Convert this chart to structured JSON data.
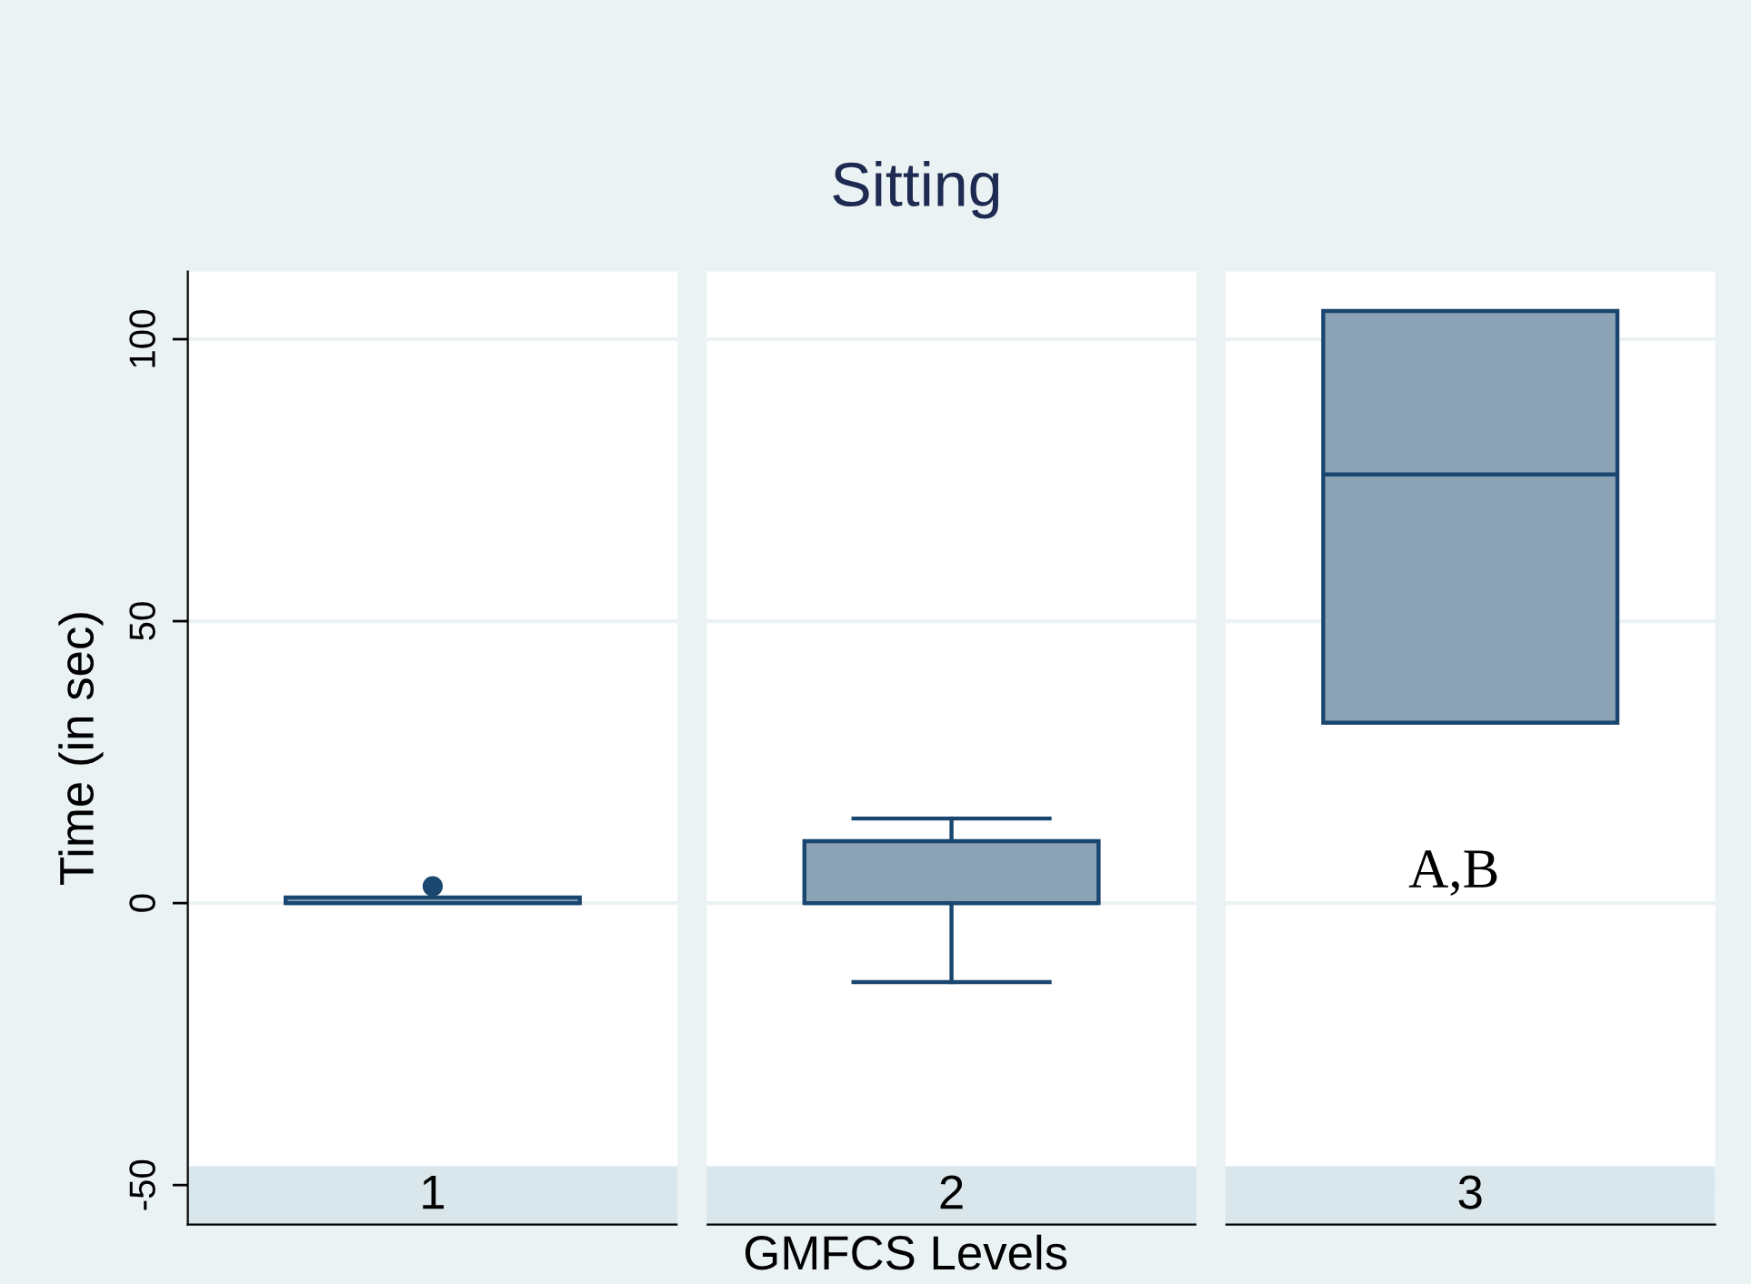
{
  "chart_data": {
    "type": "box",
    "title": "Sitting",
    "xlabel": "GMFCS Levels",
    "ylabel": "Time (in sec)",
    "categories": [
      "1",
      "2",
      "3"
    ],
    "color": "#8ca3b6",
    "boxes": [
      {
        "low": 0,
        "q1": 0,
        "median": 0,
        "q3": 1,
        "high": 1,
        "outliers": [
          3
        ]
      },
      {
        "low": -14,
        "q1": 0,
        "median": 0,
        "q3": 11,
        "high": 15
      },
      {
        "low": 32,
        "q1": 32,
        "median": 76,
        "q3": 105,
        "high": 105
      }
    ],
    "annotations": [
      "A,B"
    ],
    "ylim": [
      -57,
      112
    ],
    "yticks": [
      -50,
      0,
      50,
      100
    ],
    "grid": "y"
  }
}
